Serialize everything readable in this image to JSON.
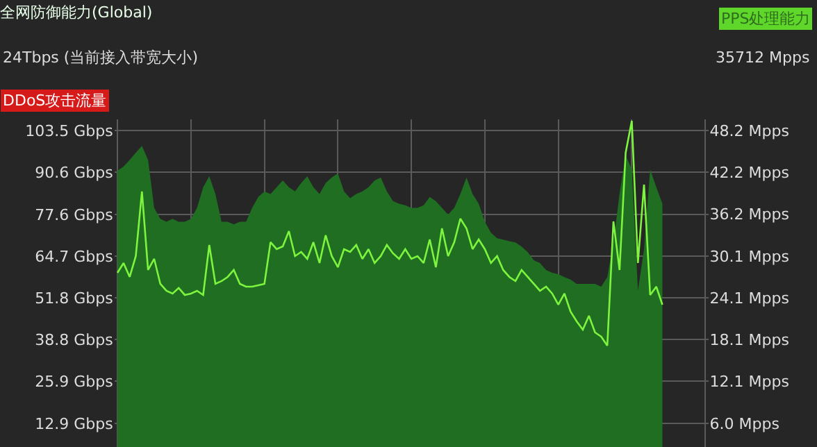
{
  "chart_data": {
    "type": "area",
    "title": "全网防御能力(Global)",
    "subtitle": "24Tbps (当前接入带宽大小)",
    "annotations": [
      "PPS处理能力",
      "35712 Mpps",
      "DDoS攻击流量"
    ],
    "categories": [
      null,
      null,
      null,
      null,
      null,
      null,
      null,
      null,
      null,
      null,
      null,
      null,
      null,
      null,
      null,
      null,
      null,
      null,
      null,
      null,
      null,
      null,
      null,
      null,
      null,
      null,
      null,
      null,
      null,
      null,
      null,
      null,
      null,
      null,
      null,
      null,
      null,
      null,
      null,
      null,
      null,
      null,
      null,
      null,
      null,
      null,
      null,
      null,
      null,
      null,
      null,
      null,
      null,
      null,
      null,
      null,
      null,
      null,
      null,
      null,
      null,
      null,
      null,
      null,
      null,
      null,
      null,
      null,
      null,
      null,
      null,
      null,
      null,
      null,
      null,
      null,
      null,
      null,
      null,
      null,
      null,
      null,
      null,
      null,
      null,
      null,
      null,
      null,
      null,
      null,
      null,
      null,
      null,
      null,
      null,
      null,
      null
    ],
    "series": [
      {
        "color": "#1f6e22",
        "values": [
          91.1,
          92.4,
          94.5,
          96.7,
          98.8,
          94.5,
          79.6,
          76.2,
          75.3,
          76.2,
          75.3,
          75.3,
          76.2,
          79.6,
          86.0,
          89.4,
          83.9,
          75.3,
          75.3,
          74.5,
          75.3,
          75.3,
          79.6,
          83.0,
          84.7,
          83.9,
          86.0,
          88.1,
          86.0,
          84.7,
          87.3,
          89.4,
          86.0,
          83.9,
          87.3,
          89.0,
          90.3,
          84.7,
          82.6,
          83.9,
          84.7,
          86.0,
          88.1,
          89.0,
          84.7,
          81.7,
          80.9,
          80.4,
          79.6,
          79.6,
          80.4,
          83.0,
          81.7,
          79.6,
          77.5,
          79.6,
          83.9,
          89.0,
          83.9,
          80.9,
          75.3,
          71.9,
          70.2,
          69.8,
          69.3,
          68.9,
          67.6,
          65.9,
          63.4,
          62.5,
          60.4,
          59.5,
          59.1,
          58.2,
          57.4,
          56.1,
          56.1,
          56.1,
          56.1,
          55.2,
          58.2,
          68.9,
          83.9,
          95.8,
          91.5,
          54.0,
          66.8,
          91.5,
          86.0,
          80.9,
          null,
          null,
          null,
          null,
          null,
          null,
          null
        ]
      },
      {
        "type": "line",
        "axis": "y2",
        "color": "#7df53e",
        "values": [
          27.7,
          29.1,
          27.1,
          30.1,
          39.4,
          28.1,
          29.7,
          26.1,
          25.1,
          24.7,
          25.5,
          24.5,
          24.7,
          25.1,
          24.5,
          31.7,
          26.1,
          26.5,
          27.1,
          28.1,
          26.1,
          25.7,
          25.7,
          25.9,
          26.1,
          32.1,
          31.1,
          31.5,
          33.7,
          30.1,
          30.7,
          29.7,
          32.1,
          29.1,
          33.1,
          30.1,
          28.5,
          31.1,
          30.7,
          31.7,
          29.7,
          31.1,
          29.1,
          30.1,
          31.7,
          30.5,
          29.7,
          31.1,
          29.7,
          30.1,
          29.1,
          32.5,
          28.5,
          34.1,
          30.1,
          32.1,
          35.5,
          34.1,
          31.1,
          32.5,
          31.1,
          29.1,
          30.1,
          28.1,
          27.1,
          26.5,
          28.1,
          27.1,
          26.1,
          25.1,
          25.7,
          24.7,
          23.1,
          24.7,
          22.1,
          20.7,
          19.5,
          21.5,
          19.1,
          18.5,
          17.2,
          35.1,
          28.1,
          45.0,
          49.6,
          29.1,
          40.4,
          24.5,
          25.7,
          23.1,
          null,
          null,
          null,
          null,
          null,
          null,
          null
        ]
      }
    ],
    "ylim": [
      5.6,
      107.0
    ],
    "yticks": [
      {
        "value": 12.9,
        "label": "12.9 Gbps"
      },
      {
        "value": 25.9,
        "label": "25.9 Gbps"
      },
      {
        "value": 38.8,
        "label": "38.8 Gbps"
      },
      {
        "value": 51.8,
        "label": "51.8 Gbps"
      },
      {
        "value": 64.7,
        "label": "64.7 Gbps"
      },
      {
        "value": 77.6,
        "label": "77.6 Gbps"
      },
      {
        "value": 90.6,
        "label": "90.6 Gbps"
      },
      {
        "value": 103.5,
        "label": "103.5 Gbps"
      }
    ],
    "y2lim": [
      2.6,
      49.8
    ],
    "y2ticks": [
      {
        "value": 6.0,
        "label": "6.0 Mpps"
      },
      {
        "value": 12.1,
        "label": "12.1 Mpps"
      },
      {
        "value": 18.1,
        "label": "18.1 Mpps"
      },
      {
        "value": 24.1,
        "label": "24.1 Mpps"
      },
      {
        "value": 30.1,
        "label": "30.1 Mpps"
      },
      {
        "value": 36.2,
        "label": "36.2 Mpps"
      },
      {
        "value": 42.2,
        "label": "42.2 Mpps"
      },
      {
        "value": 48.2,
        "label": "48.2 Mpps"
      }
    ],
    "grid": true,
    "tick_labels": "y"
  }
}
